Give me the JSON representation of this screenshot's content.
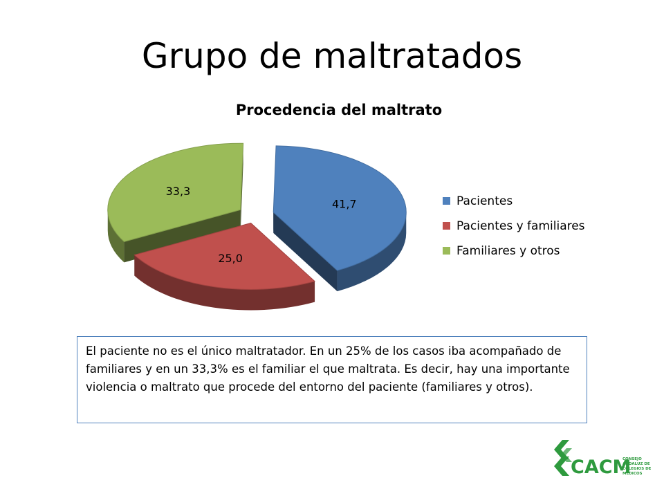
{
  "slide": {
    "title": "Grupo de maltratados",
    "note": "El paciente no es el único maltratador. En un 25% de los casos iba acompañado de familiares y en un 33,3% es el familiar el que maltrata. Es decir, hay una importante violencia o maltrato que procede del entorno del paciente (familiares y otros)."
  },
  "chart_data": {
    "type": "pie",
    "title": "Procedencia del maltrato",
    "categories": [
      "Pacientes",
      "Pacientes y familiares",
      "Familiares y otros"
    ],
    "values": [
      41.7,
      25.0,
      33.3
    ],
    "value_labels": [
      "41,7",
      "25,0",
      "33,3"
    ],
    "colors": [
      "#4F81BD",
      "#C0504D",
      "#9BBB59"
    ],
    "style": "3d-exploded",
    "legend_position": "right"
  },
  "logo": {
    "text": "CACM",
    "subtext": [
      "CONSEJO",
      "ANDALUZ DE",
      "COLEGIOS DE",
      "MÉDICOS"
    ],
    "color": "#2E9A3E",
    "icon": "cacm-logo-icon"
  }
}
